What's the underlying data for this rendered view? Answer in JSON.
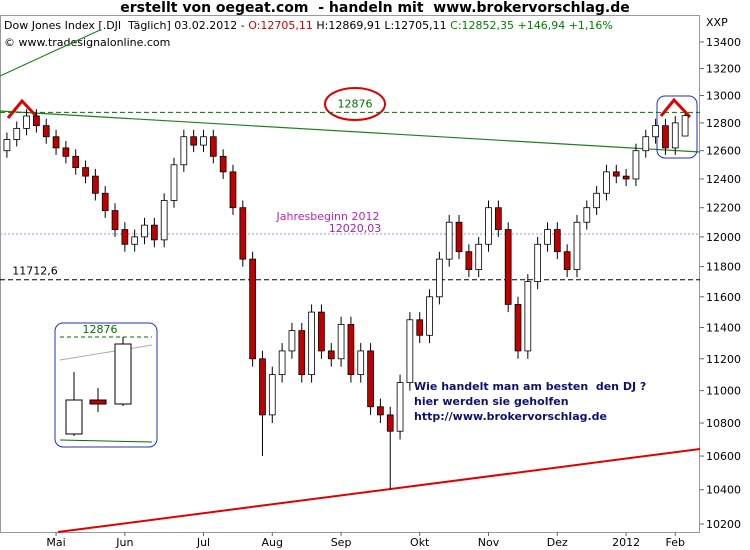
{
  "chart_data": {
    "type": "candlestick",
    "title": "erstellt von oegeat.com  - handeln mit  www.brokervorschlag.de",
    "header": [
      {
        "text": "Dow Jones Index [.DJI  Täglich] 03.02.2012 - ",
        "color": "#000000"
      },
      {
        "text": "O:12705,11",
        "color": "#d00000"
      },
      {
        "text": " H:12869,91 L:12705,11 ",
        "color": "#000000"
      },
      {
        "text": "C:12852,35 +146,94 +1,16%",
        "color": "#008000"
      }
    ],
    "source": "© www.tradesignalonline.com",
    "axis_unit": "XXP",
    "categories": [
      null,
      null,
      null,
      null,
      null,
      "Mai",
      null,
      null,
      null,
      null,
      null,
      null,
      "Jun",
      null,
      null,
      null,
      null,
      null,
      null,
      null,
      "Jul",
      null,
      null,
      null,
      null,
      null,
      null,
      "Aug",
      null,
      null,
      null,
      null,
      null,
      null,
      "Sep",
      null,
      null,
      null,
      null,
      null,
      null,
      null,
      "Okt",
      null,
      null,
      null,
      null,
      null,
      null,
      "Nov",
      null,
      null,
      null,
      null,
      null,
      null,
      "Dez",
      null,
      null,
      null,
      null,
      null,
      null,
      "2012",
      null,
      null,
      null,
      null,
      "Feb",
      null
    ],
    "open": [
      12600,
      12680,
      12760,
      12850,
      12780,
      12700,
      12620,
      12560,
      12480,
      12420,
      12300,
      12180,
      12050,
      11950,
      12000,
      12080,
      11980,
      12250,
      12500,
      12700,
      12640,
      12700,
      12560,
      12450,
      12200,
      11850,
      11200,
      10850,
      11100,
      11250,
      11380,
      11100,
      11500,
      11250,
      11200,
      11420,
      11100,
      11250,
      10900,
      10850,
      10750,
      11050,
      11450,
      11350,
      11600,
      11850,
      12100,
      11900,
      11780,
      11950,
      12200,
      12050,
      11550,
      11250,
      11700,
      11950,
      12050,
      11900,
      11780,
      12100,
      12200,
      12300,
      12450,
      12420,
      12400,
      12600,
      12700,
      12780,
      12620,
      12705.11
    ],
    "high": [
      12730,
      12810,
      12900,
      12900,
      12830,
      12750,
      12670,
      12610,
      12530,
      12470,
      12350,
      12230,
      12100,
      12050,
      12130,
      12130,
      12300,
      12550,
      12750,
      12750,
      12750,
      12750,
      12610,
      12500,
      12250,
      11900,
      11250,
      11150,
      11300,
      11430,
      11430,
      11550,
      11550,
      11300,
      11470,
      11470,
      11300,
      11300,
      10950,
      10900,
      11100,
      11500,
      11500,
      11650,
      11900,
      12150,
      12150,
      11950,
      12000,
      12250,
      12250,
      12100,
      11600,
      11750,
      12000,
      12100,
      12100,
      11950,
      12150,
      12250,
      12350,
      12500,
      12500,
      12470,
      12650,
      12750,
      12830,
      12830,
      12850,
      12869.91
    ],
    "low": [
      12550,
      12630,
      12710,
      12730,
      12650,
      12570,
      12510,
      12430,
      12370,
      12250,
      12130,
      12000,
      11900,
      11900,
      11950,
      11930,
      11930,
      12200,
      12450,
      12590,
      12590,
      12510,
      12400,
      12150,
      11800,
      11150,
      10600,
      10800,
      11050,
      11200,
      11050,
      11050,
      11200,
      11150,
      11150,
      11050,
      11050,
      10850,
      10800,
      10404,
      10700,
      11000,
      11300,
      11300,
      11550,
      11800,
      11850,
      11730,
      11730,
      11900,
      12000,
      11500,
      11200,
      11200,
      11650,
      11900,
      11850,
      11730,
      11730,
      12050,
      12150,
      12250,
      12370,
      12350,
      12350,
      12550,
      12650,
      12570,
      12570,
      12705.11
    ],
    "close": [
      12680,
      12760,
      12850,
      12780,
      12700,
      12620,
      12560,
      12480,
      12420,
      12300,
      12180,
      12050,
      11950,
      12000,
      12080,
      11980,
      12250,
      12500,
      12700,
      12640,
      12700,
      12560,
      12450,
      12200,
      11850,
      11200,
      10850,
      11100,
      11250,
      11380,
      11100,
      11500,
      11250,
      11200,
      11420,
      11100,
      11250,
      10900,
      10850,
      10750,
      11050,
      11450,
      11350,
      11600,
      11850,
      12100,
      11900,
      11780,
      11950,
      12200,
      12050,
      11550,
      11250,
      11700,
      11950,
      12050,
      11900,
      11780,
      12100,
      12200,
      12300,
      12450,
      12420,
      12400,
      12600,
      12700,
      12780,
      12620,
      12800,
      12852.35
    ],
    "up_color": "#ffffff",
    "down_color": "#c00000",
    "log_y": true,
    "ylim": [
      10154,
      13606
    ],
    "yticks": [
      10200,
      10400,
      10600,
      10800,
      11000,
      11200,
      11400,
      11600,
      11800,
      12000,
      12200,
      12400,
      12600,
      12800,
      13000,
      13200,
      13400
    ],
    "grid": false,
    "reference_lines": [
      {
        "value": 12876,
        "color": "#007000"
      },
      {
        "value": 12020.03,
        "label": "12020,03",
        "note": "Jahresbeginn 2012",
        "color": "#8899ff"
      },
      {
        "value": 11712.6,
        "label": "11712,6",
        "color": "#000000"
      }
    ],
    "annotation": [
      "Wie handelt man am besten  den DJ ?",
      "hier werden sie geholfen",
      "http://www.brokervorschlag.de"
    ]
  }
}
